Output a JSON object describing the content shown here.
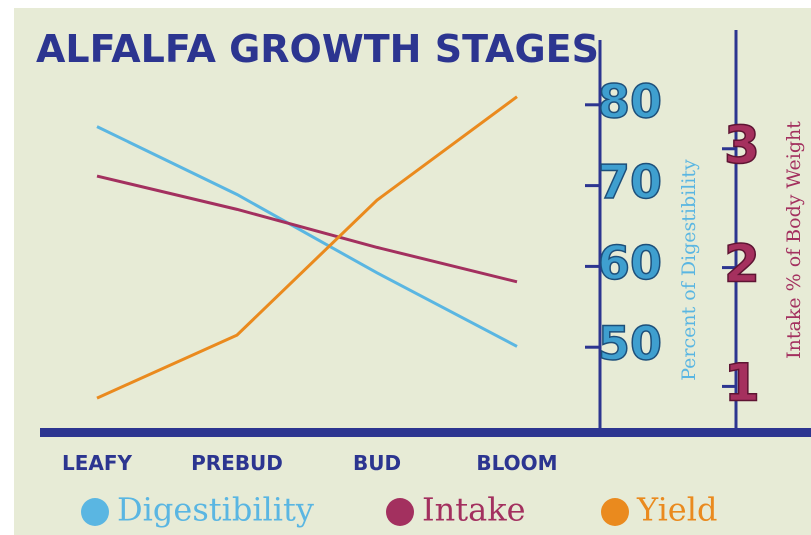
{
  "chart_data": {
    "type": "line",
    "title": "ALFALFA GROWTH STAGES",
    "categories": [
      "LEAFY",
      "PREBUD",
      "BUD",
      "BLOOM"
    ],
    "series": [
      {
        "name": "Digestibility",
        "color": "#5ab6e2",
        "values": [
          77.3,
          68.9,
          59.2,
          50.1
        ]
      },
      {
        "name": "Intake",
        "color": "#a3305f",
        "values": [
          2.77,
          2.49,
          2.17,
          1.88
        ],
        "axis": "y2"
      },
      {
        "name": "Yield",
        "color": "#ea8a1e",
        "values": [
          43.7,
          51.5,
          68.2,
          81
        ]
      }
    ],
    "ylabel": "Percent of Digestibility",
    "y2label": "Intake % of Body Weight",
    "ylim": [
      40,
      90
    ],
    "yticks": [
      50,
      60,
      70,
      80
    ],
    "y2lim": [
      0.65,
      4.05
    ],
    "y2ticks": [
      1,
      2,
      3
    ]
  }
}
